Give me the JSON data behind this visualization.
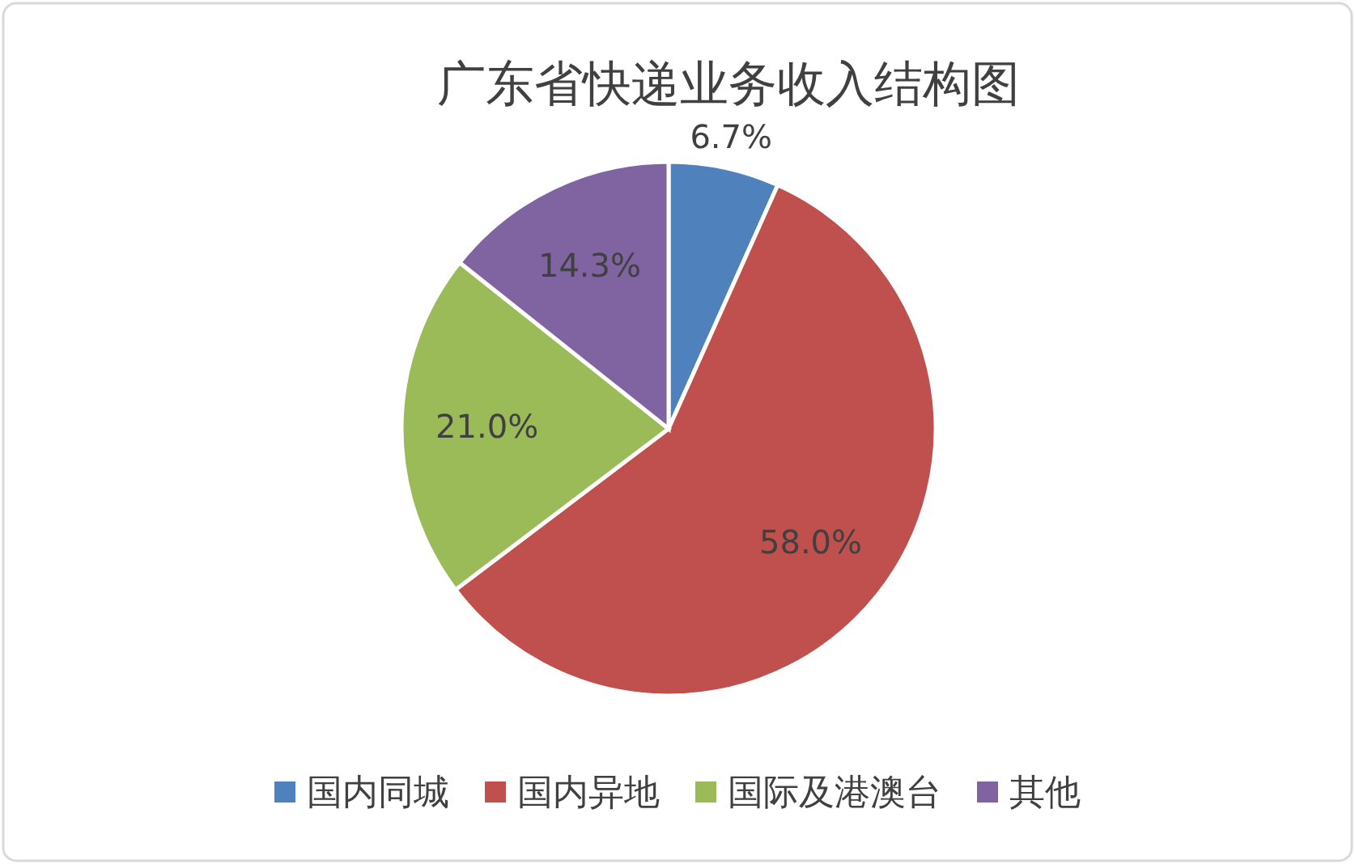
{
  "chart_data": {
    "type": "pie",
    "title": "广东省快递业务收入结构图",
    "categories": [
      "国内同城",
      "国内异地",
      "国际及港澳台",
      "其他"
    ],
    "values": [
      6.7,
      58.0,
      21.0,
      14.3
    ],
    "colors": [
      "#4f81bd",
      "#c0504d",
      "#9bbb59",
      "#8064a2"
    ],
    "value_labels": [
      "6.7%",
      "58.0%",
      "21.0%",
      "14.3%"
    ],
    "legend": "bottom"
  }
}
